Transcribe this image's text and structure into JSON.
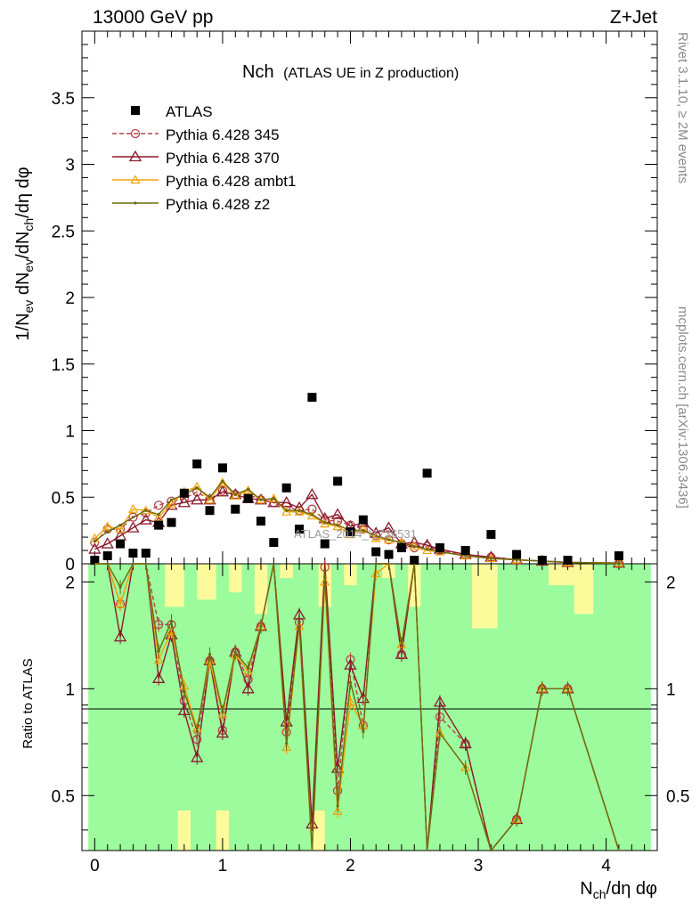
{
  "header": {
    "energy_label": "13000 GeV pp",
    "process_label": "Z+Jet",
    "title_main": "Nch",
    "title_sub": "(ATLAS UE in Z production)",
    "ylabel_main": "1/N",
    "ylabel_sub1": "ev",
    "ylabel_mid1": " dN",
    "ylabel_sub2": "ev",
    "ylabel_mid2": "/dN",
    "ylabel_sub3": "ch",
    "ylabel_tail": "/dη dφ",
    "ylabel_ratio": "Ratio to ATLAS",
    "xlabel_main": "N",
    "xlabel_sub": "ch",
    "xlabel_tail": "/dη dφ",
    "side_rivet": "Rivet 3.1.10, ≥ 2M events",
    "side_site": "mcplots.cern.ch [arXiv:1306.3436]",
    "watermark": "ATLAS_2014_I1736531"
  },
  "chart_data": {
    "type": "line",
    "xlim": [
      -0.1,
      4.4
    ],
    "ylim_main": [
      0,
      4.0
    ],
    "ylim_ratio": [
      0.35,
      2.25
    ],
    "x_ticks": [
      0,
      1,
      2,
      3,
      4
    ],
    "y_ticks_main": [
      0,
      0.5,
      1,
      1.5,
      2,
      2.5,
      3,
      3.5
    ],
    "y_tick_labels_main": [
      "0",
      "0.5",
      "1",
      "1.5",
      "2",
      "2.5",
      "3",
      "3.5"
    ],
    "y_ticks_ratio": [
      0.5,
      1,
      2
    ],
    "legend_position": "top-left",
    "colors": {
      "atlas": "#000000",
      "p345": "#b5434b",
      "p370": "#8b1a2b",
      "ambt1": "#f0a30a",
      "z2": "#6b6b10",
      "band_inner": "#9cfb9c",
      "band_outer": "#fbfb9c"
    },
    "x": [
      0.0,
      0.1,
      0.2,
      0.3,
      0.4,
      0.5,
      0.6,
      0.7,
      0.8,
      0.9,
      1.0,
      1.1,
      1.2,
      1.3,
      1.4,
      1.5,
      1.6,
      1.7,
      1.8,
      1.9,
      2.0,
      2.1,
      2.2,
      2.3,
      2.4,
      2.5,
      2.6,
      2.7,
      2.9,
      3.1,
      3.3,
      3.5,
      3.7,
      4.1
    ],
    "data": {
      "name": "ATLAS",
      "values": [
        0.02,
        0.06,
        0.15,
        0.08,
        0.08,
        0.29,
        0.31,
        0.53,
        0.75,
        0.4,
        0.72,
        0.41,
        0.49,
        0.32,
        0.16,
        0.57,
        0.26,
        1.25,
        0.15,
        0.62,
        0.24,
        0.33,
        0.09,
        0.07,
        0.12,
        0.02,
        0.68,
        0.12,
        0.1,
        0.22,
        0.07,
        0.02,
        0.01,
        0.06
      ]
    },
    "series": [
      {
        "name": "Pythia 6.428 345",
        "marker": "circle",
        "dashed": true,
        "values": [
          0.16,
          0.26,
          0.26,
          0.35,
          0.38,
          0.44,
          0.47,
          0.49,
          0.54,
          0.48,
          0.55,
          0.52,
          0.52,
          0.48,
          0.46,
          0.43,
          0.4,
          0.41,
          0.33,
          0.32,
          0.29,
          0.26,
          0.21,
          0.18,
          0.15,
          0.12,
          0.13,
          0.1,
          0.07,
          0.05,
          0.03,
          0.02,
          0.01,
          0.005
        ]
      },
      {
        "name": "Pythia 6.428 370",
        "marker": "triangle",
        "dashed": false,
        "values": [
          0.11,
          0.15,
          0.21,
          0.27,
          0.33,
          0.31,
          0.44,
          0.46,
          0.48,
          0.48,
          0.54,
          0.52,
          0.49,
          0.48,
          0.46,
          0.46,
          0.42,
          0.52,
          0.34,
          0.37,
          0.28,
          0.31,
          0.23,
          0.27,
          0.15,
          0.16,
          0.14,
          0.11,
          0.07,
          0.05,
          0.03,
          0.02,
          0.01,
          0.005
        ]
      },
      {
        "name": "Pythia 6.428 ambt1",
        "marker": "triangle-small",
        "dashed": false,
        "values": [
          0.19,
          0.28,
          0.26,
          0.41,
          0.4,
          0.35,
          0.45,
          0.54,
          0.58,
          0.48,
          0.61,
          0.51,
          0.55,
          0.48,
          0.49,
          0.39,
          0.39,
          0.36,
          0.3,
          0.28,
          0.22,
          0.26,
          0.19,
          0.18,
          0.16,
          0.13,
          0.1,
          0.09,
          0.06,
          0.04,
          0.03,
          0.02,
          0.01,
          0.005
        ]
      },
      {
        "name": "Pythia 6.428 z2",
        "marker": "dot",
        "dashed": false,
        "values": [
          0.17,
          0.24,
          0.29,
          0.35,
          0.4,
          0.37,
          0.48,
          0.52,
          0.57,
          0.5,
          0.62,
          0.52,
          0.56,
          0.48,
          0.49,
          0.4,
          0.4,
          0.37,
          0.31,
          0.29,
          0.25,
          0.25,
          0.21,
          0.18,
          0.16,
          0.13,
          0.11,
          0.09,
          0.06,
          0.04,
          0.03,
          0.02,
          0.01,
          0.005
        ]
      }
    ]
  }
}
